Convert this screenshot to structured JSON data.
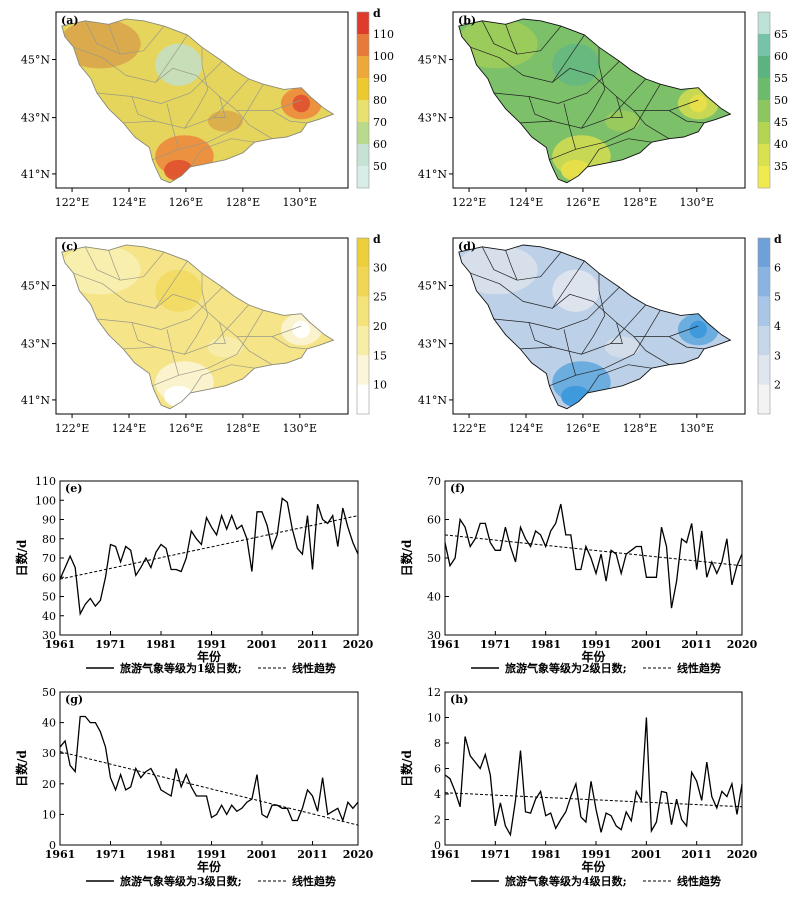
{
  "maps": [
    {
      "label": "(a)",
      "unit": "d",
      "legend": {
        "ticks": [
          "50",
          "60",
          "70",
          "80",
          "90",
          "100",
          "110"
        ],
        "colors": [
          "#d8ece8",
          "#c5e2d4",
          "#b9d98d",
          "#e8e070",
          "#ecc831",
          "#eea83a",
          "#e57a3a",
          "#dd3c2c"
        ]
      },
      "fill": "#e6d55c",
      "shade": "#d9a54a",
      "hot": "#e0542f",
      "hot2": "#ec8a3c",
      "cool": "#bfe0d0"
    },
    {
      "label": "(b)",
      "unit": "",
      "legend": {
        "ticks": [
          "35",
          "40",
          "45",
          "50",
          "55",
          "60",
          "65"
        ],
        "colors": [
          "#f1ea4f",
          "#d9e24e",
          "#b4d454",
          "#8bc65f",
          "#6bbb6b",
          "#5bb47f",
          "#76c3a8",
          "#bfe2d8"
        ]
      },
      "fill": "#7cc06a",
      "shade": "#9fcc5a",
      "hot": "#e8df4a",
      "hot2": "#cfdc52",
      "cool": "#62b685"
    },
    {
      "label": "(c)",
      "unit": "d",
      "legend": {
        "ticks": [
          "10",
          "15",
          "20",
          "25",
          "30"
        ],
        "colors": [
          "#ffffff",
          "#fbf6d9",
          "#f8eda6",
          "#f4e27a",
          "#f0d654",
          "#eccf3a"
        ]
      },
      "fill": "#f5e488",
      "shade": "#f8eeb2",
      "hot": "#ffffff",
      "hot2": "#fbf4d6",
      "cool": "#f1da5e"
    },
    {
      "label": "(d)",
      "unit": "d",
      "legend": {
        "ticks": [
          "2",
          "3",
          "4",
          "5",
          "6"
        ],
        "colors": [
          "#f3f3f3",
          "#dfe6ee",
          "#c7d7ea",
          "#a9c6e8",
          "#8ab3e2",
          "#6ea0da"
        ]
      },
      "fill": "#bcd0e8",
      "shade": "#d8e0ea",
      "hot": "#3d98dc",
      "hot2": "#63a8de",
      "cool": "#e6e9ee"
    }
  ],
  "map_axes": {
    "lat_ticks": [
      "41°N",
      "43°N",
      "45°N"
    ],
    "lon_ticks": [
      "122°E",
      "124°E",
      "126°E",
      "128°E",
      "130°E"
    ]
  },
  "chart_data": [
    {
      "type": "line",
      "label": "(e)",
      "x_start": 1961,
      "values": [
        59,
        65,
        71,
        65,
        41,
        46,
        49,
        45,
        48,
        60,
        77,
        76,
        68,
        76,
        74,
        61,
        65,
        70,
        65,
        73,
        77,
        75,
        64,
        64,
        63,
        70,
        84,
        80,
        77,
        91,
        86,
        82,
        92,
        85,
        92,
        85,
        87,
        80,
        63,
        94,
        94,
        87,
        75,
        82,
        101,
        99,
        85,
        75,
        72,
        92,
        64,
        98,
        90,
        88,
        92,
        76,
        96,
        86,
        78,
        72
      ],
      "trend": [
        59.0,
        92.0
      ],
      "xlabel": "年份",
      "ylabel": "日数/d",
      "ylim": [
        30,
        110
      ],
      "yticks": [
        30,
        40,
        50,
        60,
        70,
        80,
        90,
        100,
        110
      ],
      "xticks": [
        1961,
        1971,
        1981,
        1991,
        2001,
        2011,
        2020
      ],
      "legend": {
        "solid": "旅游气象等级为1级日数;",
        "dashed": "线性趋势"
      }
    },
    {
      "type": "line",
      "label": "(f)",
      "x_start": 1961,
      "values": [
        54,
        48,
        50,
        60,
        58,
        53,
        55,
        59,
        59,
        54,
        52,
        52,
        58,
        53,
        49,
        58,
        55,
        53,
        57,
        56,
        53,
        57,
        59,
        64,
        56,
        56,
        47,
        47,
        53,
        50,
        46,
        51,
        44,
        52,
        51,
        46,
        51,
        52,
        53,
        53,
        45,
        45,
        45,
        58,
        53,
        37,
        44,
        55,
        54,
        59,
        47,
        57,
        45,
        49,
        46,
        49,
        55,
        43,
        48,
        51
      ],
      "trend": [
        56.0,
        48.0
      ],
      "xlabel": "年份",
      "ylabel": "日数/d",
      "ylim": [
        30,
        70
      ],
      "yticks": [
        30,
        40,
        50,
        60,
        70
      ],
      "xticks": [
        1961,
        1971,
        1981,
        1991,
        2001,
        2011,
        2020
      ],
      "legend": {
        "solid": "旅游气象等级为2级日数;",
        "dashed": "线性趋势"
      }
    },
    {
      "type": "line",
      "label": "(g)",
      "x_start": 1961,
      "values": [
        32,
        34,
        26,
        24,
        42,
        42,
        40,
        40,
        37,
        32,
        22,
        18,
        23,
        18,
        19,
        25,
        22,
        24,
        25,
        22,
        18,
        17,
        16,
        25,
        19,
        23,
        19,
        16,
        16,
        16,
        9,
        10,
        13,
        10,
        13,
        11,
        12,
        14,
        15,
        23,
        10,
        9,
        13,
        13,
        12,
        12,
        8,
        8,
        12,
        18,
        16,
        11,
        22,
        10,
        11,
        12,
        8,
        14,
        12,
        14
      ],
      "trend": [
        30.5,
        6.5
      ],
      "xlabel": "年份",
      "ylabel": "日数/d",
      "ylim": [
        0,
        50
      ],
      "yticks": [
        0,
        10,
        20,
        30,
        40,
        50
      ],
      "xticks": [
        1961,
        1971,
        1981,
        1991,
        2001,
        2011,
        2020
      ],
      "legend": {
        "solid": "旅游气象等级为3级日数;",
        "dashed": "线性趋势"
      }
    },
    {
      "type": "line",
      "label": "(h)",
      "x_start": 1961,
      "values": [
        5.5,
        5.2,
        4.2,
        3.0,
        8.5,
        7.0,
        6.5,
        6.0,
        7.1,
        5.5,
        1.5,
        3.3,
        1.5,
        0.8,
        3.5,
        7.4,
        2.6,
        2.5,
        3.6,
        4.2,
        2.3,
        2.5,
        1.3,
        2.0,
        2.6,
        3.8,
        4.8,
        2.2,
        1.8,
        5.0,
        2.8,
        1.0,
        2.5,
        2.3,
        1.5,
        1.2,
        2.6,
        1.9,
        4.2,
        3.5,
        10.0,
        1.1,
        1.8,
        4.2,
        4.1,
        1.6,
        3.6,
        2.0,
        1.5,
        5.7,
        5.0,
        3.5,
        6.5,
        3.8,
        2.9,
        4.2,
        3.8,
        4.8,
        2.4,
        4.8
      ],
      "trend": [
        4.1,
        3.0
      ],
      "xlabel": "年份",
      "ylabel": "日数/d",
      "ylim": [
        0,
        12
      ],
      "yticks": [
        0,
        2,
        4,
        6,
        8,
        10,
        12
      ],
      "xticks": [
        1961,
        1971,
        1981,
        1991,
        2001,
        2011,
        2020
      ],
      "legend": {
        "solid": "旅游气象等级为4级日数;",
        "dashed": "线性趋势"
      }
    }
  ]
}
